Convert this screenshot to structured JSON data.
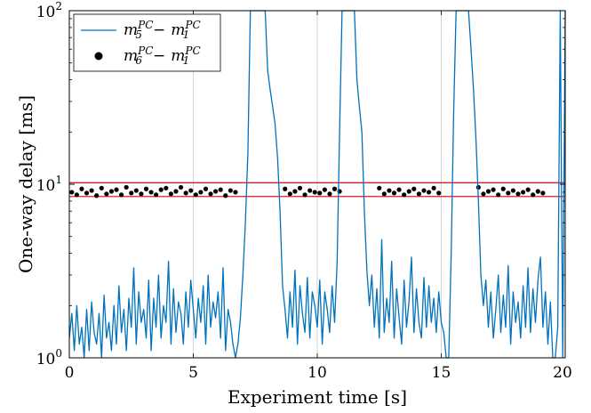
{
  "chart_data": {
    "type": "line",
    "title": "",
    "xlabel": "Experiment time [s]",
    "ylabel": "One-way delay [ms]",
    "xlim": [
      0,
      20
    ],
    "ylim": [
      1,
      100
    ],
    "yscale": "log",
    "grid": "vertical",
    "legend_position": "top-left",
    "x_ticks": [
      0,
      5,
      10,
      15,
      20
    ],
    "x_tick_labels": [
      "0",
      "5",
      "10",
      "15",
      "20"
    ],
    "y_ticks": [
      1,
      10,
      100
    ],
    "y_tick_labels": [
      {
        "base": "10",
        "exp": "0"
      },
      {
        "base": "10",
        "exp": "1"
      },
      {
        "base": "10",
        "exp": "2"
      }
    ],
    "reference_lines": [
      {
        "y": 10.2,
        "color": "#e31a1c"
      },
      {
        "y": 8.5,
        "color": "#e31a1c"
      }
    ],
    "series": [
      {
        "legend": {
          "m": "m",
          "a_sub": "5",
          "sup": "PC",
          "minus": "−",
          "b_sub": "1"
        },
        "color": "#0072bd",
        "style": "line",
        "x": [
          0.0,
          0.1,
          0.2,
          0.3,
          0.4,
          0.5,
          0.6,
          0.7,
          0.8,
          0.9,
          1.0,
          1.1,
          1.2,
          1.3,
          1.4,
          1.5,
          1.6,
          1.7,
          1.8,
          1.9,
          2.0,
          2.1,
          2.2,
          2.3,
          2.4,
          2.5,
          2.6,
          2.7,
          2.8,
          2.9,
          3.0,
          3.1,
          3.2,
          3.3,
          3.4,
          3.5,
          3.6,
          3.7,
          3.8,
          3.9,
          4.0,
          4.1,
          4.2,
          4.3,
          4.4,
          4.5,
          4.6,
          4.7,
          4.8,
          4.9,
          5.0,
          5.1,
          5.2,
          5.3,
          5.4,
          5.5,
          5.6,
          5.7,
          5.8,
          5.9,
          6.0,
          6.1,
          6.2,
          6.3,
          6.4,
          6.5,
          6.6,
          6.7,
          6.8,
          6.9,
          7.0,
          7.1,
          7.2,
          7.3,
          7.4,
          7.5,
          7.6,
          7.7,
          7.8,
          7.9,
          8.0,
          8.1,
          8.2,
          8.3,
          8.4,
          8.5,
          8.6,
          8.7,
          8.8,
          8.9,
          9.0,
          9.1,
          9.2,
          9.3,
          9.4,
          9.5,
          9.6,
          9.7,
          9.8,
          9.9,
          10.0,
          10.1,
          10.2,
          10.3,
          10.4,
          10.5,
          10.6,
          10.7,
          10.8,
          10.9,
          11.0,
          11.1,
          11.2,
          11.3,
          11.4,
          11.5,
          11.6,
          11.7,
          11.8,
          11.9,
          12.0,
          12.1,
          12.2,
          12.3,
          12.4,
          12.5,
          12.6,
          12.7,
          12.8,
          12.9,
          13.0,
          13.1,
          13.2,
          13.3,
          13.4,
          13.5,
          13.6,
          13.7,
          13.8,
          13.9,
          14.0,
          14.1,
          14.2,
          14.3,
          14.4,
          14.5,
          14.6,
          14.7,
          14.8,
          14.9,
          15.0,
          15.1,
          15.2,
          15.3,
          15.4,
          15.5,
          15.6,
          15.7,
          15.8,
          15.9,
          16.0,
          16.1,
          16.2,
          16.3,
          16.4,
          16.5,
          16.6,
          16.7,
          16.8,
          16.9,
          17.0,
          17.1,
          17.2,
          17.3,
          17.4,
          17.5,
          17.6,
          17.7,
          17.8,
          17.9,
          18.0,
          18.1,
          18.2,
          18.3,
          18.4,
          18.5,
          18.6,
          18.7,
          18.8,
          18.9,
          19.0,
          19.1,
          19.2,
          19.3,
          19.4,
          19.5,
          19.6,
          19.7,
          19.8,
          19.9,
          20.0
        ],
        "y": [
          1.3,
          1.8,
          1.1,
          2.0,
          1.2,
          1.5,
          1.0,
          1.9,
          1.1,
          2.1,
          1.4,
          1.2,
          1.8,
          1.0,
          2.3,
          1.3,
          1.6,
          1.1,
          2.0,
          1.2,
          2.6,
          1.4,
          1.9,
          1.1,
          2.2,
          1.5,
          3.3,
          1.2,
          2.4,
          1.6,
          1.9,
          1.3,
          2.8,
          1.1,
          2.2,
          1.5,
          3.0,
          1.3,
          2.0,
          1.6,
          3.6,
          1.2,
          2.5,
          1.4,
          2.1,
          1.8,
          1.2,
          2.4,
          1.5,
          2.8,
          1.9,
          1.3,
          2.2,
          1.6,
          2.6,
          1.2,
          3.0,
          1.5,
          2.1,
          1.7,
          2.4,
          1.3,
          3.3,
          1.1,
          1.9,
          1.6,
          1.2,
          1.0,
          1.2,
          1.7,
          3.0,
          6.0,
          15.0,
          100,
          100,
          100,
          100,
          100,
          100,
          100,
          45.0,
          35.0,
          28.0,
          22.0,
          14.0,
          7.0,
          2.6,
          1.9,
          1.3,
          2.4,
          1.5,
          3.2,
          1.2,
          2.6,
          1.8,
          1.4,
          2.9,
          1.3,
          2.4,
          2.0,
          1.5,
          2.8,
          1.2,
          2.4,
          1.9,
          1.4,
          2.6,
          1.6,
          3.5,
          20.0,
          100,
          100,
          100,
          100,
          100,
          100,
          40.0,
          28.0,
          20.0,
          7.0,
          3.2,
          2.0,
          3.0,
          1.5,
          2.5,
          1.3,
          4.8,
          1.4,
          2.2,
          1.6,
          3.6,
          1.3,
          2.5,
          1.7,
          1.2,
          2.8,
          1.5,
          2.1,
          3.8,
          1.4,
          2.5,
          1.6,
          1.3,
          2.9,
          1.5,
          2.6,
          1.6,
          2.2,
          1.4,
          2.4,
          1.6,
          1.4,
          1.0,
          1.0,
          4.0,
          25.0,
          100,
          100,
          100,
          100,
          100,
          100,
          60.0,
          35.0,
          18.0,
          8.0,
          3.0,
          2.0,
          2.8,
          1.5,
          2.4,
          1.3,
          1.9,
          3.0,
          1.4,
          2.3,
          1.5,
          3.4,
          1.2,
          2.4,
          1.6,
          2.1,
          1.3,
          2.6,
          1.5,
          3.3,
          1.4,
          2.5,
          1.6,
          2.8,
          3.8,
          1.5,
          2.4,
          1.2,
          2.1,
          1.0,
          1.0,
          1.5,
          100,
          1.0,
          100
        ]
      },
      {
        "legend": {
          "m": "m",
          "a_sub": "6",
          "sup": "PC",
          "minus": "−",
          "b_sub": "1"
        },
        "color": "#000000",
        "style": "marker",
        "x": [
          0.1,
          0.3,
          0.5,
          0.7,
          0.9,
          1.1,
          1.3,
          1.5,
          1.7,
          1.9,
          2.1,
          2.3,
          2.5,
          2.7,
          2.9,
          3.1,
          3.3,
          3.5,
          3.7,
          3.9,
          4.1,
          4.3,
          4.5,
          4.7,
          4.9,
          5.1,
          5.3,
          5.5,
          5.7,
          5.9,
          6.1,
          6.3,
          6.5,
          6.7,
          8.7,
          8.9,
          9.1,
          9.3,
          9.5,
          9.7,
          9.9,
          10.1,
          10.3,
          10.5,
          10.7,
          10.9,
          12.5,
          12.7,
          12.9,
          13.1,
          13.3,
          13.5,
          13.7,
          13.9,
          14.1,
          14.3,
          14.5,
          14.7,
          14.9,
          16.5,
          16.7,
          16.9,
          17.1,
          17.3,
          17.5,
          17.7,
          17.9,
          18.1,
          18.3,
          18.5,
          18.7,
          18.9,
          19.1
        ],
        "y": [
          9.0,
          8.7,
          9.4,
          8.9,
          9.2,
          8.6,
          9.5,
          8.8,
          9.1,
          9.3,
          8.7,
          9.6,
          8.9,
          9.2,
          8.8,
          9.4,
          9.0,
          8.7,
          9.3,
          9.5,
          8.8,
          9.1,
          9.6,
          8.9,
          9.2,
          8.7,
          9.0,
          9.4,
          8.8,
          9.1,
          9.3,
          8.6,
          9.2,
          9.0,
          9.4,
          8.8,
          9.1,
          9.5,
          8.7,
          9.2,
          9.0,
          8.9,
          9.3,
          8.8,
          9.4,
          9.1,
          9.5,
          8.8,
          9.2,
          8.9,
          9.3,
          8.7,
          9.1,
          9.4,
          8.8,
          9.2,
          9.0,
          9.5,
          8.9,
          9.6,
          8.8,
          9.1,
          9.3,
          8.7,
          9.4,
          8.9,
          9.2,
          8.8,
          9.0,
          9.3,
          8.7,
          9.1,
          8.9
        ]
      }
    ]
  }
}
